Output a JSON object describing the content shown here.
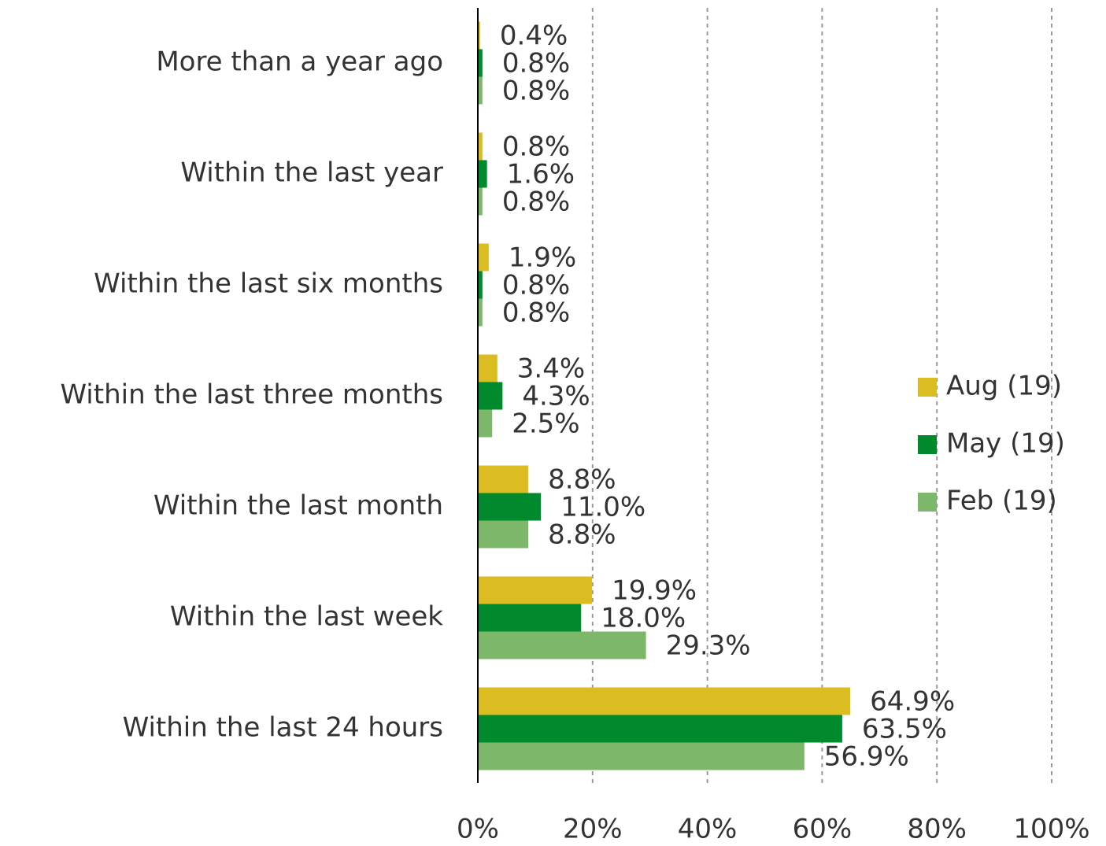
{
  "chart_data": {
    "type": "hbar",
    "categories": [
      "More than a year ago",
      "Within the last year",
      "Within the last six months",
      "Within the last three months",
      "Within the last month",
      "Within the last week",
      "Within the last 24 hours"
    ],
    "series": [
      {
        "name": "Aug (19)",
        "color": "#dbbd22",
        "values": [
          0.4,
          0.8,
          1.9,
          3.4,
          8.8,
          19.9,
          64.9
        ],
        "value_labels": [
          "0.4%",
          "0.8%",
          "1.9%",
          "3.4%",
          "8.8%",
          "19.9%",
          "64.9%"
        ]
      },
      {
        "name": "May (19)",
        "color": "#008a2e",
        "values": [
          0.8,
          1.6,
          0.8,
          4.3,
          11.0,
          18.0,
          63.5
        ],
        "value_labels": [
          "0.8%",
          "1.6%",
          "0.8%",
          "4.3%",
          "11.0%",
          "18.0%",
          "63.5%"
        ]
      },
      {
        "name": "Feb (19)",
        "color": "#7db86a",
        "values": [
          0.8,
          0.8,
          0.8,
          2.5,
          8.8,
          29.3,
          56.9
        ],
        "value_labels": [
          "0.8%",
          "0.8%",
          "0.8%",
          "2.5%",
          "8.8%",
          "29.3%",
          "56.9%"
        ]
      }
    ],
    "xlim": [
      0,
      100
    ],
    "xticks": [
      {
        "value": 0,
        "label": "0%"
      },
      {
        "value": 20,
        "label": "20%"
      },
      {
        "value": 40,
        "label": "40%"
      },
      {
        "value": 60,
        "label": "60%"
      },
      {
        "value": 80,
        "label": "80%"
      },
      {
        "value": 100,
        "label": "100%"
      }
    ],
    "grid": true,
    "legend": "right"
  }
}
